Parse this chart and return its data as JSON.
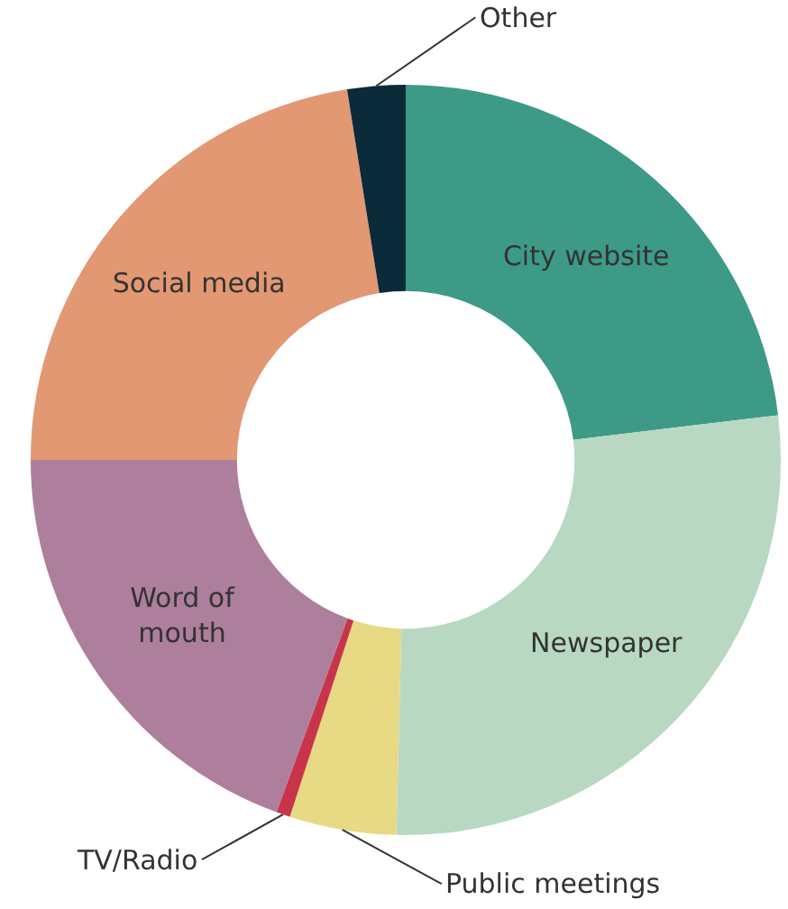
{
  "chart_data": {
    "type": "donut",
    "categories": [
      "City website",
      "Newspaper",
      "Public meetings",
      "TV/Radio",
      "Word of mouth",
      "Social media",
      "Other"
    ],
    "values": [
      23.1,
      27.3,
      4.6,
      0.6,
      19.4,
      22.5,
      2.5
    ],
    "colors": [
      "#3d9a87",
      "#b9d8c2",
      "#e8d984",
      "#c8354a",
      "#ad7f9d",
      "#e29872",
      "#0b2a3a"
    ],
    "legend": false
  }
}
